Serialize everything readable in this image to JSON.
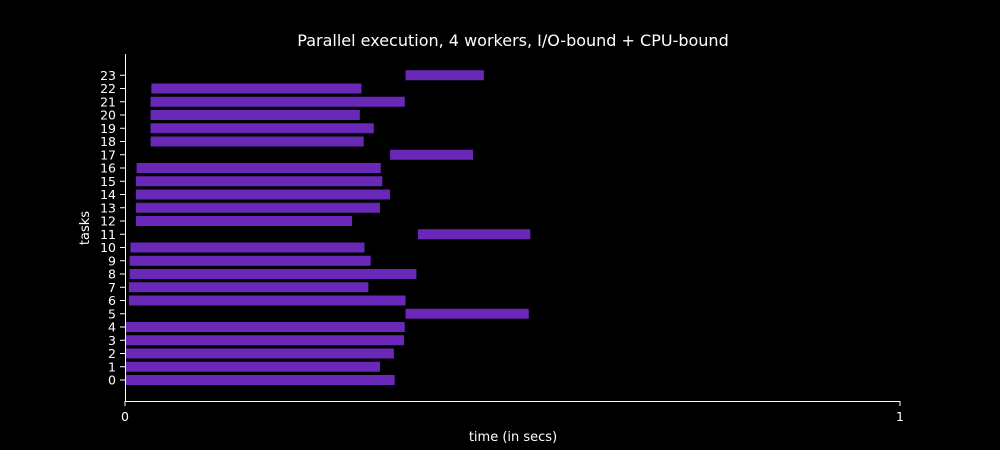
{
  "chart_data": {
    "type": "bar",
    "orientation": "horizontal-gantt",
    "title": "Parallel execution, 4 workers, I/O-bound + CPU-bound",
    "xlabel": "time (in secs)",
    "ylabel": "tasks",
    "xlim": [
      0,
      1
    ],
    "x_ticks": [
      "0",
      "1"
    ],
    "categories": [
      "0",
      "1",
      "2",
      "3",
      "4",
      "5",
      "6",
      "7",
      "8",
      "9",
      "10",
      "11",
      "12",
      "13",
      "14",
      "15",
      "16",
      "17",
      "18",
      "19",
      "20",
      "21",
      "22",
      "23"
    ],
    "tasks": [
      {
        "task": "0",
        "start": 0.0,
        "end": 0.348
      },
      {
        "task": "1",
        "start": 0.0,
        "end": 0.329
      },
      {
        "task": "2",
        "start": 0.0,
        "end": 0.347
      },
      {
        "task": "3",
        "start": 0.0,
        "end": 0.36
      },
      {
        "task": "4",
        "start": 0.0,
        "end": 0.361
      },
      {
        "task": "5",
        "start": 0.362,
        "end": 0.521
      },
      {
        "task": "6",
        "start": 0.005,
        "end": 0.362
      },
      {
        "task": "7",
        "start": 0.005,
        "end": 0.314
      },
      {
        "task": "8",
        "start": 0.006,
        "end": 0.376
      },
      {
        "task": "9",
        "start": 0.006,
        "end": 0.317
      },
      {
        "task": "10",
        "start": 0.007,
        "end": 0.309
      },
      {
        "task": "11",
        "start": 0.378,
        "end": 0.523
      },
      {
        "task": "12",
        "start": 0.014,
        "end": 0.293
      },
      {
        "task": "13",
        "start": 0.014,
        "end": 0.329
      },
      {
        "task": "14",
        "start": 0.014,
        "end": 0.342
      },
      {
        "task": "15",
        "start": 0.014,
        "end": 0.332
      },
      {
        "task": "16",
        "start": 0.015,
        "end": 0.33
      },
      {
        "task": "17",
        "start": 0.342,
        "end": 0.449
      },
      {
        "task": "18",
        "start": 0.033,
        "end": 0.308
      },
      {
        "task": "19",
        "start": 0.033,
        "end": 0.321
      },
      {
        "task": "20",
        "start": 0.033,
        "end": 0.303
      },
      {
        "task": "21",
        "start": 0.033,
        "end": 0.361
      },
      {
        "task": "22",
        "start": 0.034,
        "end": 0.305
      },
      {
        "task": "23",
        "start": 0.362,
        "end": 0.463
      }
    ],
    "bar_color": "#6a28b8",
    "background": "#000000",
    "grid": false,
    "legend": "none"
  }
}
